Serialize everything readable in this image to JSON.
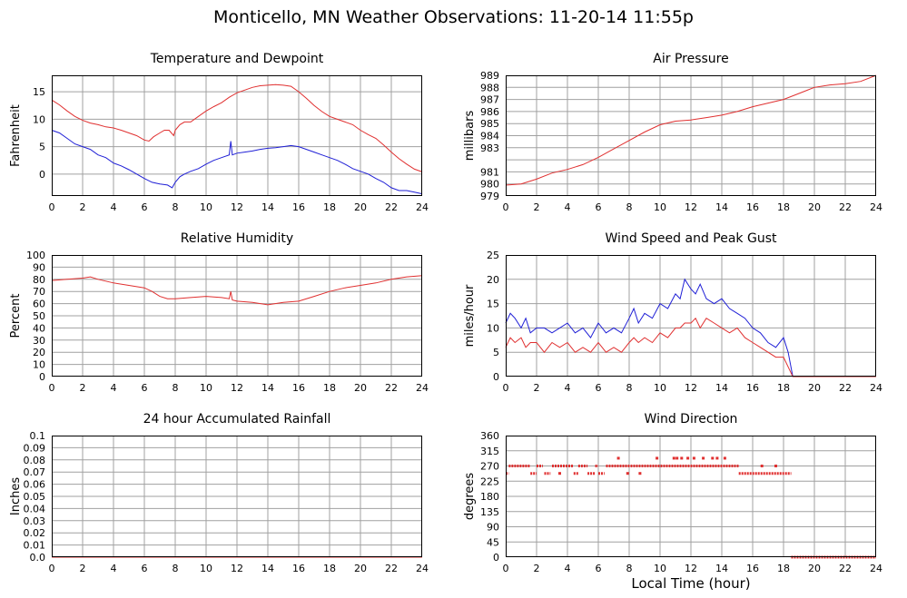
{
  "page": {
    "title": "Monticello, MN Weather Observations: 11-20-14 11:55p",
    "x_axis_label": "Local Time (hour)"
  },
  "colors": {
    "red": "#e03030",
    "blue": "#1f1fd6",
    "grid": "#a0a0a0",
    "frame": "#000000"
  },
  "chart_data": [
    {
      "id": "temperature",
      "type": "line",
      "title": "Temperature and Dewpoint",
      "xlabel": "",
      "ylabel": "Fahrenheit",
      "xlim": [
        0,
        24
      ],
      "ylim": [
        -4,
        18
      ],
      "yticks": [
        0,
        5,
        10,
        15
      ],
      "xticks": [
        0,
        2,
        4,
        6,
        8,
        10,
        12,
        14,
        16,
        18,
        20,
        22,
        24
      ],
      "grid": true,
      "series": [
        {
          "color": "red",
          "x": [
            0,
            0.5,
            1,
            1.5,
            2,
            2.5,
            3,
            3.5,
            4,
            4.5,
            5,
            5.5,
            6,
            6.3,
            6.6,
            7,
            7.3,
            7.6,
            7.9,
            8,
            8.3,
            8.6,
            9,
            9.5,
            10,
            10.5,
            11,
            11.5,
            12,
            12.5,
            13,
            13.5,
            14,
            14.5,
            15,
            15.5,
            16,
            16.5,
            17,
            17.5,
            18,
            18.5,
            19,
            19.5,
            20,
            20.5,
            21,
            21.5,
            22,
            22.5,
            23,
            23.5,
            24
          ],
          "y": [
            13.5,
            12.6,
            11.5,
            10.5,
            9.8,
            9.3,
            9.0,
            8.6,
            8.4,
            8.0,
            7.5,
            7.0,
            6.2,
            6.0,
            6.8,
            7.5,
            8.0,
            8.0,
            7.0,
            8.0,
            9.0,
            9.5,
            9.5,
            10.5,
            11.5,
            12.3,
            13.0,
            14.0,
            14.8,
            15.3,
            15.8,
            16.1,
            16.2,
            16.3,
            16.2,
            16.0,
            15.0,
            13.8,
            12.5,
            11.4,
            10.5,
            10.0,
            9.5,
            9.0,
            8.0,
            7.2,
            6.5,
            5.3,
            4.0,
            2.8,
            1.8,
            0.9,
            0.4
          ]
        },
        {
          "color": "blue",
          "x": [
            0,
            0.5,
            1,
            1.5,
            2,
            2.5,
            3,
            3.5,
            4,
            4.5,
            5,
            5.5,
            6,
            6.5,
            7,
            7.5,
            7.8,
            8,
            8.3,
            8.6,
            9,
            9.5,
            10,
            10.5,
            11,
            11.5,
            11.6,
            11.7,
            12,
            12.5,
            13,
            13.5,
            14,
            14.5,
            15,
            15.5,
            16,
            16.5,
            17,
            17.5,
            18,
            18.5,
            19,
            19.5,
            20,
            20.5,
            21,
            21.5,
            22,
            22.5,
            23,
            23.5,
            24
          ],
          "y": [
            8.0,
            7.5,
            6.5,
            5.5,
            5.0,
            4.5,
            3.5,
            3.0,
            2.0,
            1.5,
            0.8,
            0.0,
            -0.8,
            -1.5,
            -1.8,
            -2.0,
            -2.5,
            -1.5,
            -0.5,
            0.0,
            0.5,
            1.0,
            1.8,
            2.5,
            3.0,
            3.5,
            6.0,
            3.5,
            3.8,
            4.0,
            4.2,
            4.5,
            4.7,
            4.8,
            5.0,
            5.2,
            5.0,
            4.5,
            4.0,
            3.5,
            3.0,
            2.5,
            1.8,
            1.0,
            0.5,
            0.0,
            -0.8,
            -1.5,
            -2.5,
            -3.0,
            -3.0,
            -3.3,
            -3.6
          ]
        }
      ]
    },
    {
      "id": "pressure",
      "type": "line",
      "title": "Air Pressure",
      "xlabel": "",
      "ylabel": "millibars",
      "xlim": [
        0,
        24
      ],
      "ylim": [
        979,
        989
      ],
      "yticks": [
        979,
        980,
        981,
        982,
        983,
        984,
        985,
        986,
        987,
        988,
        989
      ],
      "ytick_labels": [
        "979",
        "980",
        "981",
        "",
        "983",
        "984",
        "985",
        "986",
        "987",
        "988",
        "989"
      ],
      "xticks": [
        0,
        2,
        4,
        6,
        8,
        10,
        12,
        14,
        16,
        18,
        20,
        22,
        24
      ],
      "grid": true,
      "series": [
        {
          "color": "red",
          "x": [
            0,
            1,
            2,
            3,
            4,
            5,
            6,
            7,
            8,
            9,
            10,
            11,
            12,
            13,
            14,
            15,
            16,
            17,
            18,
            19,
            20,
            21,
            22,
            23,
            24
          ],
          "y": [
            979.9,
            980.0,
            980.4,
            980.9,
            981.2,
            981.6,
            982.2,
            982.9,
            983.6,
            984.3,
            984.9,
            985.2,
            985.3,
            985.5,
            985.7,
            986.0,
            986.4,
            986.7,
            987.0,
            987.5,
            988.0,
            988.2,
            988.3,
            988.5,
            989.0
          ]
        }
      ]
    },
    {
      "id": "humidity",
      "type": "line",
      "title": "Relative Humidity",
      "xlabel": "",
      "ylabel": "Percent",
      "xlim": [
        0,
        24
      ],
      "ylim": [
        0,
        100
      ],
      "yticks": [
        0,
        10,
        20,
        30,
        40,
        50,
        60,
        70,
        80,
        90,
        100
      ],
      "xticks": [
        0,
        2,
        4,
        6,
        8,
        10,
        12,
        14,
        16,
        18,
        20,
        22,
        24
      ],
      "grid": true,
      "series": [
        {
          "color": "red",
          "x": [
            0,
            1,
            2,
            2.5,
            3,
            4,
            5,
            6,
            6.5,
            7,
            7.5,
            8,
            9,
            10,
            11,
            11.5,
            11.6,
            11.7,
            12,
            13,
            14,
            15,
            16,
            17,
            18,
            19,
            20,
            21,
            22,
            23,
            24
          ],
          "y": [
            79,
            80,
            81,
            82,
            80,
            77,
            75,
            73,
            70,
            66,
            64,
            64,
            65,
            66,
            65,
            64,
            70,
            63,
            62,
            61,
            59,
            61,
            62,
            66,
            70,
            73,
            75,
            77,
            80,
            82,
            83
          ]
        }
      ]
    },
    {
      "id": "wind_speed",
      "type": "line",
      "title": "Wind Speed and Peak Gust",
      "xlabel": "",
      "ylabel": "miles/hour",
      "xlim": [
        0,
        24
      ],
      "ylim": [
        0,
        25
      ],
      "yticks": [
        0,
        5,
        10,
        15,
        20,
        25
      ],
      "xticks": [
        0,
        2,
        4,
        6,
        8,
        10,
        12,
        14,
        16,
        18,
        20,
        22,
        24
      ],
      "grid": true,
      "series": [
        {
          "color": "blue",
          "x": [
            0,
            0.3,
            0.6,
            1,
            1.3,
            1.6,
            2,
            2.5,
            3,
            3.5,
            4,
            4.5,
            5,
            5.5,
            6,
            6.5,
            7,
            7.5,
            8,
            8.3,
            8.6,
            9,
            9.5,
            10,
            10.5,
            11,
            11.3,
            11.6,
            12,
            12.3,
            12.6,
            13,
            13.5,
            14,
            14.5,
            15,
            15.5,
            16,
            16.5,
            17,
            17.5,
            18,
            18.3,
            18.6,
            19,
            20,
            21,
            22,
            23,
            24
          ],
          "y": [
            11,
            13,
            12,
            10,
            12,
            9,
            10,
            10,
            9,
            10,
            11,
            9,
            10,
            8,
            11,
            9,
            10,
            9,
            12,
            14,
            11,
            13,
            12,
            15,
            14,
            17,
            16,
            20,
            18,
            17,
            19,
            16,
            15,
            16,
            14,
            13,
            12,
            10,
            9,
            7,
            6,
            8,
            5,
            0,
            0,
            0,
            0,
            0,
            0,
            0
          ]
        },
        {
          "color": "red",
          "x": [
            0,
            0.3,
            0.6,
            1,
            1.3,
            1.6,
            2,
            2.5,
            3,
            3.5,
            4,
            4.5,
            5,
            5.5,
            6,
            6.5,
            7,
            7.5,
            8,
            8.3,
            8.6,
            9,
            9.5,
            10,
            10.5,
            11,
            11.3,
            11.6,
            12,
            12.3,
            12.6,
            13,
            13.5,
            14,
            14.5,
            15,
            15.5,
            16,
            16.5,
            17,
            17.5,
            18,
            18.3,
            18.6,
            19,
            20,
            21,
            22,
            23,
            24
          ],
          "y": [
            6,
            8,
            7,
            8,
            6,
            7,
            7,
            5,
            7,
            6,
            7,
            5,
            6,
            5,
            7,
            5,
            6,
            5,
            7,
            8,
            7,
            8,
            7,
            9,
            8,
            10,
            10,
            11,
            11,
            12,
            10,
            12,
            11,
            10,
            9,
            10,
            8,
            7,
            6,
            5,
            4,
            4,
            2,
            0,
            0,
            0,
            0,
            0,
            0,
            0
          ]
        }
      ]
    },
    {
      "id": "rainfall",
      "type": "line",
      "title": "24 hour Accumulated Rainfall",
      "xlabel": "",
      "ylabel": "Inches",
      "xlim": [
        0,
        24
      ],
      "ylim": [
        0,
        0.1
      ],
      "yticks": [
        0,
        0.01,
        0.02,
        0.03,
        0.04,
        0.05,
        0.06,
        0.07,
        0.08,
        0.09,
        0.1
      ],
      "ytick_labels": [
        "0.0",
        "0.01",
        "0.02",
        "0.03",
        "0.04",
        "0.05",
        "0.06",
        "0.07",
        "0.08",
        "0.09",
        "0.1"
      ],
      "xticks": [
        0,
        2,
        4,
        6,
        8,
        10,
        12,
        14,
        16,
        18,
        20,
        22,
        24
      ],
      "grid": true,
      "series": [
        {
          "color": "red",
          "x": [
            0,
            24
          ],
          "y": [
            0,
            0
          ]
        }
      ]
    },
    {
      "id": "wind_direction",
      "type": "scatter",
      "title": "Wind Direction",
      "xlabel": "Local Time (hour)",
      "ylabel": "degrees",
      "xlim": [
        0,
        24
      ],
      "ylim": [
        0,
        360
      ],
      "yticks": [
        0,
        45,
        90,
        135,
        180,
        225,
        270,
        315,
        360
      ],
      "xticks": [
        0,
        2,
        4,
        6,
        8,
        10,
        12,
        14,
        16,
        18,
        20,
        22,
        24
      ],
      "grid": true,
      "segments": [
        {
          "x_start": 0.0,
          "x_end": 0.2,
          "y": 248
        },
        {
          "x_start": 0.2,
          "x_end": 1.6,
          "y": 270
        },
        {
          "x_start": 1.6,
          "x_end": 2.0,
          "y": 248
        },
        {
          "x_start": 2.0,
          "x_end": 2.4,
          "y": 270
        },
        {
          "x_start": 2.5,
          "x_end": 2.9,
          "y": 248
        },
        {
          "x_start": 3.0,
          "x_end": 4.4,
          "y": 270
        },
        {
          "x_start": 4.4,
          "x_end": 4.7,
          "y": 248
        },
        {
          "x_start": 4.7,
          "x_end": 5.3,
          "y": 270
        },
        {
          "x_start": 5.3,
          "x_end": 5.8,
          "y": 248
        },
        {
          "x_start": 5.8,
          "x_end": 6.0,
          "y": 270
        },
        {
          "x_start": 6.0,
          "x_end": 6.4,
          "y": 248
        },
        {
          "x_start": 6.5,
          "x_end": 15.1,
          "y": 270
        },
        {
          "x_start": 15.1,
          "x_end": 18.5,
          "y": 248
        },
        {
          "x_start": 18.5,
          "x_end": 24.0,
          "y": 0
        }
      ],
      "points": [
        {
          "x": 3.5,
          "y": 248
        },
        {
          "x": 7.3,
          "y": 293
        },
        {
          "x": 7.9,
          "y": 248
        },
        {
          "x": 8.7,
          "y": 248
        },
        {
          "x": 9.8,
          "y": 293
        },
        {
          "x": 10.9,
          "y": 293
        },
        {
          "x": 11.1,
          "y": 293
        },
        {
          "x": 11.4,
          "y": 293
        },
        {
          "x": 11.8,
          "y": 293
        },
        {
          "x": 12.2,
          "y": 293
        },
        {
          "x": 12.8,
          "y": 293
        },
        {
          "x": 13.4,
          "y": 293
        },
        {
          "x": 13.7,
          "y": 293
        },
        {
          "x": 14.2,
          "y": 293
        },
        {
          "x": 16.6,
          "y": 270
        },
        {
          "x": 17.5,
          "y": 270
        }
      ]
    }
  ]
}
